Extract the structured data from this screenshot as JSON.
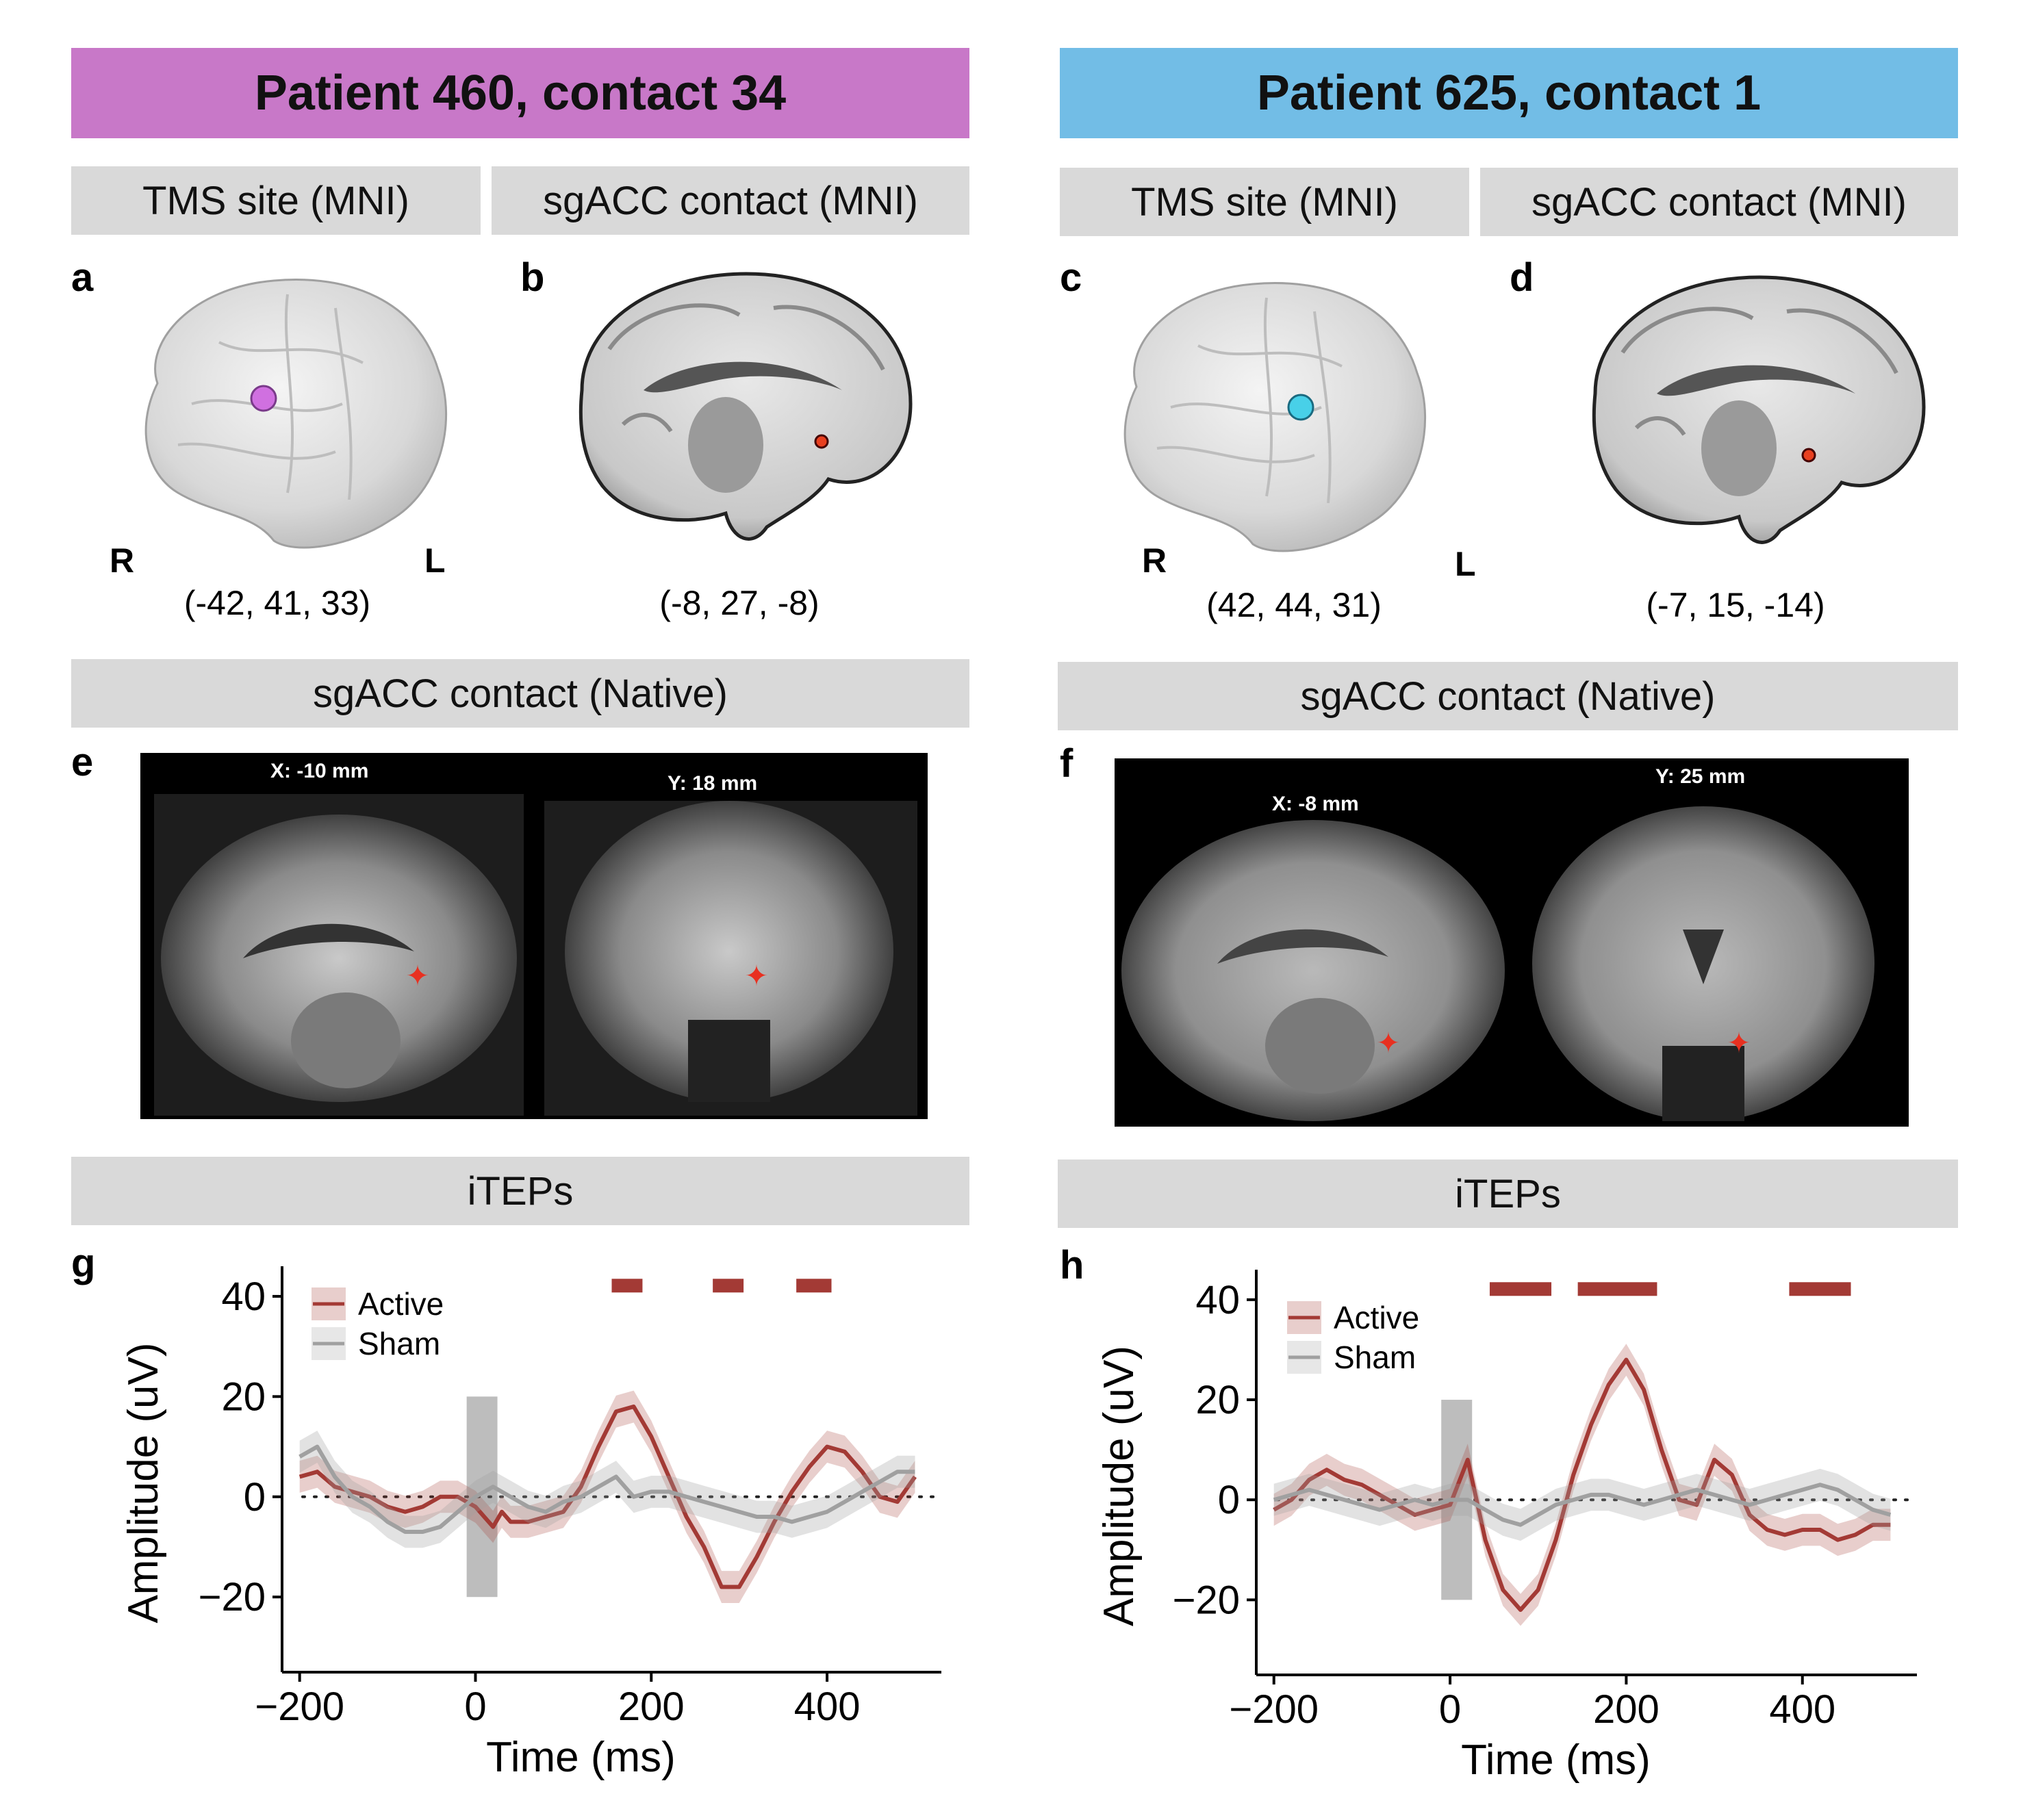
{
  "left": {
    "header": "Patient 460, contact 34",
    "header_color": "#c878c8",
    "band_tms": "TMS site (MNI)",
    "band_sgacc": "sgACC contact (MNI)",
    "label_a": "a",
    "label_b": "b",
    "side_r": "R",
    "side_l": "L",
    "coord_tms": "(-42, 41, 33)",
    "coord_sgacc": "(-8, 27, -8)",
    "tms_dot_color": "#d070e0",
    "band_native": "sgACC contact (Native)",
    "label_e": "e",
    "mri_x": "X: -10 mm",
    "mri_y": "Y: 18 mm",
    "band_iteps": "iTEPs",
    "label_g": "g"
  },
  "right": {
    "header": "Patient 625, contact 1",
    "header_color": "#72bde6",
    "band_tms": "TMS site (MNI)",
    "band_sgacc": "sgACC contact (MNI)",
    "label_c": "c",
    "label_d": "d",
    "side_r": "R",
    "side_l": "L",
    "coord_tms": "(42, 44, 31)",
    "coord_sgacc": "(-7, 15, -14)",
    "tms_dot_color": "#48d0e8",
    "band_native": "sgACC contact (Native)",
    "label_f": "f",
    "mri_x": "X: -8 mm",
    "mri_y": "Y: 25 mm",
    "band_iteps": "iTEPs",
    "label_h": "h"
  },
  "chart_data": [
    {
      "type": "line",
      "xlabel": "Time (ms)",
      "ylabel": "Amplitude (uV)",
      "xticks": [
        -200,
        0,
        200,
        400
      ],
      "yticks": [
        -20,
        0,
        20,
        40
      ],
      "xlim": [
        -220,
        530
      ],
      "ylim": [
        -35,
        46
      ],
      "stim_block": [
        -10,
        25,
        -20,
        20
      ],
      "significance_bars": [
        [
          155,
          190
        ],
        [
          270,
          305
        ],
        [
          365,
          405
        ]
      ],
      "series": [
        {
          "name": "Active",
          "color": "#a33a35",
          "x": [
            -200,
            -180,
            -160,
            -140,
            -120,
            -100,
            -80,
            -60,
            -40,
            -20,
            -10,
            0,
            10,
            20,
            30,
            40,
            60,
            80,
            100,
            120,
            140,
            160,
            180,
            200,
            220,
            240,
            260,
            280,
            300,
            320,
            340,
            360,
            380,
            400,
            420,
            440,
            460,
            480,
            500
          ],
          "y": [
            4,
            5,
            2,
            1,
            0,
            -2,
            -3,
            -2,
            0,
            0,
            -1,
            -2,
            -4,
            -6,
            -3,
            -5,
            -5,
            -4,
            -3,
            2,
            10,
            17,
            18,
            12,
            4,
            -4,
            -10,
            -18,
            -18,
            -12,
            -5,
            1,
            6,
            10,
            9,
            5,
            0,
            -1,
            4
          ]
        },
        {
          "name": "Sham",
          "color": "#a0a0a0",
          "x": [
            -200,
            -180,
            -160,
            -140,
            -120,
            -100,
            -80,
            -60,
            -40,
            -20,
            0,
            20,
            40,
            60,
            80,
            100,
            120,
            140,
            160,
            180,
            200,
            220,
            240,
            260,
            280,
            300,
            320,
            340,
            360,
            380,
            400,
            420,
            440,
            460,
            480,
            500
          ],
          "y": [
            8,
            10,
            4,
            0,
            -2,
            -5,
            -7,
            -7,
            -6,
            -3,
            0,
            2,
            0,
            -2,
            -3,
            -1,
            0,
            2,
            4,
            0,
            1,
            1,
            0,
            -1,
            -2,
            -3,
            -4,
            -4,
            -5,
            -4,
            -3,
            -1,
            1,
            3,
            5,
            5
          ]
        }
      ]
    },
    {
      "type": "line",
      "xlabel": "Time (ms)",
      "ylabel": "Amplitude (uV)",
      "xticks": [
        -200,
        0,
        200,
        400
      ],
      "yticks": [
        -20,
        0,
        20,
        40
      ],
      "xlim": [
        -220,
        530
      ],
      "ylim": [
        -35,
        46
      ],
      "stim_block": [
        -10,
        25,
        -20,
        20
      ],
      "significance_bars": [
        [
          45,
          115
        ],
        [
          145,
          235
        ],
        [
          385,
          455
        ]
      ],
      "series": [
        {
          "name": "Active",
          "color": "#a33a35",
          "x": [
            -200,
            -180,
            -160,
            -140,
            -120,
            -100,
            -80,
            -60,
            -40,
            -20,
            0,
            20,
            30,
            40,
            60,
            80,
            100,
            120,
            140,
            160,
            180,
            200,
            220,
            240,
            260,
            280,
            300,
            320,
            340,
            360,
            380,
            400,
            420,
            440,
            460,
            480,
            500
          ],
          "y": [
            -2,
            0,
            4,
            6,
            4,
            3,
            1,
            -1,
            -3,
            -2,
            -1,
            8,
            0,
            -8,
            -18,
            -22,
            -18,
            -8,
            5,
            15,
            23,
            28,
            22,
            10,
            0,
            -1,
            8,
            5,
            -3,
            -6,
            -7,
            -6,
            -6,
            -8,
            -7,
            -5,
            -5
          ]
        },
        {
          "name": "Sham",
          "color": "#a0a0a0",
          "x": [
            -200,
            -180,
            -160,
            -140,
            -120,
            -100,
            -80,
            -60,
            -40,
            -20,
            0,
            20,
            40,
            60,
            80,
            100,
            120,
            140,
            160,
            180,
            200,
            220,
            240,
            260,
            280,
            300,
            320,
            340,
            360,
            380,
            400,
            420,
            440,
            460,
            480,
            500
          ],
          "y": [
            0,
            1,
            2,
            1,
            0,
            -1,
            -2,
            -1,
            0,
            -1,
            0,
            0,
            -2,
            -4,
            -5,
            -3,
            -1,
            0,
            1,
            1,
            0,
            -1,
            0,
            1,
            2,
            1,
            0,
            -1,
            0,
            1,
            2,
            3,
            2,
            0,
            -2,
            -3
          ]
        }
      ]
    }
  ]
}
